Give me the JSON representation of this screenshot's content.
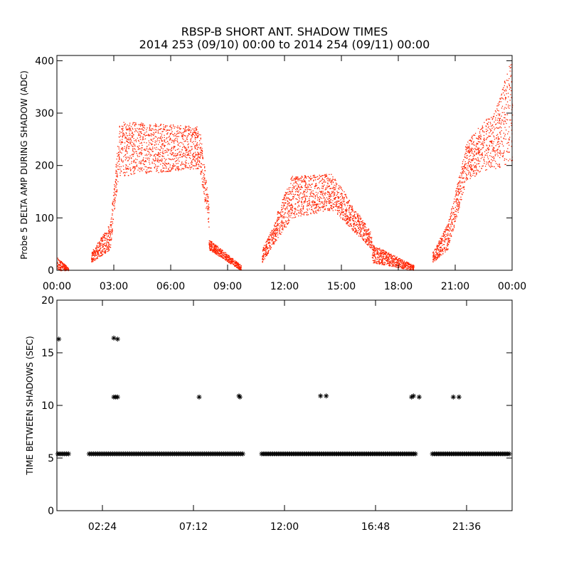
{
  "title_line1": "RBSP-B SHORT ANT. SHADOW TIMES",
  "title_line2": "2014 253 (09/10) 00:00 to 2014 254 (09/11) 00:00",
  "colors": {
    "top_series": "#ff2200",
    "bottom_series": "#000000",
    "axes": "#000000"
  },
  "chart_data": [
    {
      "type": "scatter",
      "ylabel": "Probe 5 DELTA AMP DURING SHADOW (ADC)",
      "xlim_hours": [
        0,
        24
      ],
      "ylim": [
        0,
        410
      ],
      "x_tick_labels": [
        "00:00",
        "03:00",
        "06:00",
        "09:00",
        "12:00",
        "15:00",
        "18:00",
        "21:00",
        "00:00"
      ],
      "x_tick_hours": [
        0,
        3,
        6,
        9,
        12,
        15,
        18,
        21,
        24
      ],
      "y_ticks": [
        0,
        100,
        200,
        300,
        400
      ],
      "series": [
        {
          "marker": "dot",
          "envelope": [
            {
              "start": 0.0,
              "end": 0.6,
              "lo": [
                0,
                0
              ],
              "hi": [
                25,
                5
              ]
            },
            {
              "start": 1.8,
              "end": 2.8,
              "lo": [
                15,
                40
              ],
              "hi": [
                35,
                90
              ]
            },
            {
              "start": 2.8,
              "end": 3.3,
              "lo": [
                40,
                200
              ],
              "hi": [
                90,
                285
              ]
            },
            {
              "start": 3.3,
              "end": 7.5,
              "lo": [
                180,
                195
              ],
              "hi": [
                285,
                275
              ]
            },
            {
              "start": 7.5,
              "end": 8.0,
              "lo": [
                195,
                80
              ],
              "hi": [
                275,
                130
              ]
            },
            {
              "start": 8.0,
              "end": 9.7,
              "lo": [
                40,
                0
              ],
              "hi": [
                60,
                10
              ]
            },
            {
              "start": 10.8,
              "end": 11.6,
              "lo": [
                15,
                60
              ],
              "hi": [
                40,
                100
              ]
            },
            {
              "start": 11.6,
              "end": 12.3,
              "lo": [
                60,
                95
              ],
              "hi": [
                110,
                175
              ]
            },
            {
              "start": 12.3,
              "end": 14.5,
              "lo": [
                100,
                115
              ],
              "hi": [
                180,
                185
              ]
            },
            {
              "start": 14.5,
              "end": 16.6,
              "lo": [
                115,
                40
              ],
              "hi": [
                185,
                70
              ]
            },
            {
              "start": 16.6,
              "end": 18.8,
              "lo": [
                15,
                0
              ],
              "hi": [
                50,
                10
              ]
            },
            {
              "start": 19.8,
              "end": 20.6,
              "lo": [
                15,
                40
              ],
              "hi": [
                35,
                90
              ]
            },
            {
              "start": 20.6,
              "end": 21.5,
              "lo": [
                40,
                160
              ],
              "hi": [
                90,
                230
              ]
            },
            {
              "start": 21.5,
              "end": 23.0,
              "lo": [
                170,
                200
              ],
              "hi": [
                240,
                310
              ]
            },
            {
              "start": 23.0,
              "end": 24.0,
              "lo": [
                190,
                210
              ],
              "hi": [
                300,
                410
              ]
            }
          ]
        }
      ]
    },
    {
      "type": "scatter",
      "ylabel": "TIME BETWEEN SHADOWS (SEC)",
      "xlim_hours": [
        0,
        24
      ],
      "ylim": [
        0,
        20
      ],
      "x_tick_labels": [
        "02:24",
        "07:12",
        "12:00",
        "16:48",
        "21:36"
      ],
      "x_tick_hours": [
        2.4,
        7.2,
        12.0,
        16.8,
        21.6
      ],
      "y_ticks": [
        0,
        5,
        10,
        15,
        20
      ],
      "series": [
        {
          "marker": "asterisk",
          "baseline_value": 5.4,
          "baseline_segments": [
            [
              0.05,
              0.7
            ],
            [
              1.7,
              9.8
            ],
            [
              10.8,
              18.9
            ],
            [
              19.8,
              23.95
            ]
          ],
          "points": [
            {
              "x": 0.1,
              "y": 16.3
            },
            {
              "x": 3.0,
              "y": 16.4
            },
            {
              "x": 3.2,
              "y": 16.3
            },
            {
              "x": 3.0,
              "y": 10.8
            },
            {
              "x": 3.1,
              "y": 10.8
            },
            {
              "x": 3.2,
              "y": 10.8
            },
            {
              "x": 7.5,
              "y": 10.8
            },
            {
              "x": 9.6,
              "y": 10.9
            },
            {
              "x": 9.65,
              "y": 10.8
            },
            {
              "x": 13.9,
              "y": 10.9
            },
            {
              "x": 14.2,
              "y": 10.9
            },
            {
              "x": 18.7,
              "y": 10.8
            },
            {
              "x": 18.8,
              "y": 10.9
            },
            {
              "x": 19.1,
              "y": 10.8
            },
            {
              "x": 20.9,
              "y": 10.8
            },
            {
              "x": 21.2,
              "y": 10.8
            }
          ]
        }
      ]
    }
  ]
}
